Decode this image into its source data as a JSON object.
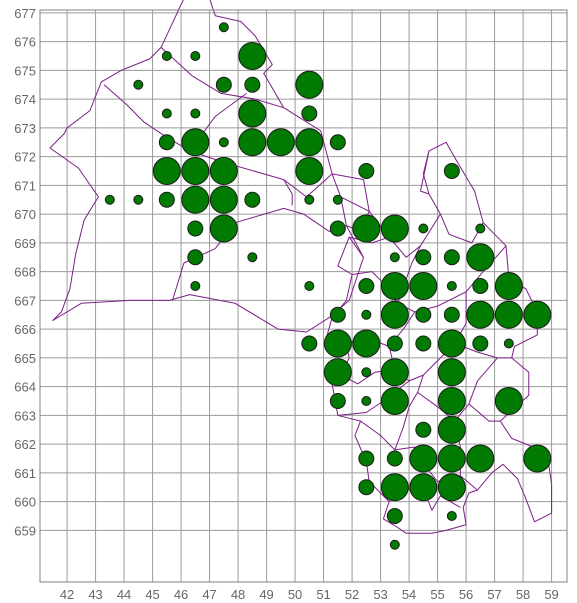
{
  "colors": {
    "dot": "#007a00",
    "boundary": "#7b1f86",
    "grid": "#9a9a9a",
    "tick": "#666666"
  },
  "chart_data": {
    "type": "scatter",
    "title": "",
    "xlabel": "",
    "ylabel": "",
    "xlim": [
      41,
      59.5
    ],
    "ylim": [
      658,
      677.5
    ],
    "grid": true,
    "x_ticks": [
      "42",
      "43",
      "44",
      "45",
      "46",
      "47",
      "48",
      "49",
      "50",
      "51",
      "52",
      "53",
      "54",
      "55",
      "56",
      "57",
      "58",
      "59"
    ],
    "y_ticks": [
      "659",
      "660",
      "661",
      "662",
      "663",
      "664",
      "665",
      "666",
      "667",
      "668",
      "669",
      "670",
      "671",
      "672",
      "673",
      "674",
      "675",
      "676",
      "677"
    ],
    "size_classes": [
      "small",
      "medium",
      "large",
      "xlarge"
    ],
    "points": [
      {
        "x": 47.5,
        "y": 676.5,
        "s": 0
      },
      {
        "x": 45.5,
        "y": 675.5,
        "s": 0
      },
      {
        "x": 46.5,
        "y": 675.5,
        "s": 0
      },
      {
        "x": 48.5,
        "y": 675.5,
        "s": 3
      },
      {
        "x": 44.5,
        "y": 674.5,
        "s": 0
      },
      {
        "x": 47.5,
        "y": 674.5,
        "s": 1
      },
      {
        "x": 48.5,
        "y": 674.5,
        "s": 1
      },
      {
        "x": 50.5,
        "y": 674.5,
        "s": 3
      },
      {
        "x": 45.5,
        "y": 673.5,
        "s": 0
      },
      {
        "x": 46.5,
        "y": 673.5,
        "s": 0
      },
      {
        "x": 48.5,
        "y": 673.5,
        "s": 3
      },
      {
        "x": 50.5,
        "y": 673.5,
        "s": 1
      },
      {
        "x": 45.5,
        "y": 672.5,
        "s": 1
      },
      {
        "x": 46.5,
        "y": 672.5,
        "s": 3
      },
      {
        "x": 47.5,
        "y": 672.5,
        "s": 0
      },
      {
        "x": 48.5,
        "y": 672.5,
        "s": 3
      },
      {
        "x": 49.5,
        "y": 672.5,
        "s": 3
      },
      {
        "x": 50.5,
        "y": 672.5,
        "s": 3
      },
      {
        "x": 51.5,
        "y": 672.5,
        "s": 1
      },
      {
        "x": 45.5,
        "y": 671.5,
        "s": 3
      },
      {
        "x": 46.5,
        "y": 671.5,
        "s": 3
      },
      {
        "x": 47.5,
        "y": 671.5,
        "s": 3
      },
      {
        "x": 50.5,
        "y": 671.5,
        "s": 3
      },
      {
        "x": 52.5,
        "y": 671.5,
        "s": 1
      },
      {
        "x": 55.5,
        "y": 671.5,
        "s": 1
      },
      {
        "x": 43.5,
        "y": 670.5,
        "s": 0
      },
      {
        "x": 44.5,
        "y": 670.5,
        "s": 0
      },
      {
        "x": 45.5,
        "y": 670.5,
        "s": 1
      },
      {
        "x": 46.5,
        "y": 670.5,
        "s": 3
      },
      {
        "x": 47.5,
        "y": 670.5,
        "s": 3
      },
      {
        "x": 48.5,
        "y": 670.5,
        "s": 1
      },
      {
        "x": 50.5,
        "y": 670.5,
        "s": 0
      },
      {
        "x": 51.5,
        "y": 670.5,
        "s": 0
      },
      {
        "x": 46.5,
        "y": 669.5,
        "s": 1
      },
      {
        "x": 47.5,
        "y": 669.5,
        "s": 3
      },
      {
        "x": 51.5,
        "y": 669.5,
        "s": 1
      },
      {
        "x": 52.5,
        "y": 669.5,
        "s": 3
      },
      {
        "x": 53.5,
        "y": 669.5,
        "s": 3
      },
      {
        "x": 54.5,
        "y": 669.5,
        "s": 0
      },
      {
        "x": 56.5,
        "y": 669.5,
        "s": 0
      },
      {
        "x": 46.5,
        "y": 668.5,
        "s": 1
      },
      {
        "x": 48.5,
        "y": 668.5,
        "s": 0
      },
      {
        "x": 53.5,
        "y": 668.5,
        "s": 0
      },
      {
        "x": 54.5,
        "y": 668.5,
        "s": 1
      },
      {
        "x": 55.5,
        "y": 668.5,
        "s": 1
      },
      {
        "x": 56.5,
        "y": 668.5,
        "s": 3
      },
      {
        "x": 46.5,
        "y": 667.5,
        "s": 0
      },
      {
        "x": 50.5,
        "y": 667.5,
        "s": 0
      },
      {
        "x": 52.5,
        "y": 667.5,
        "s": 1
      },
      {
        "x": 53.5,
        "y": 667.5,
        "s": 3
      },
      {
        "x": 54.5,
        "y": 667.5,
        "s": 3
      },
      {
        "x": 55.5,
        "y": 667.5,
        "s": 0
      },
      {
        "x": 56.5,
        "y": 667.5,
        "s": 1
      },
      {
        "x": 57.5,
        "y": 667.5,
        "s": 3
      },
      {
        "x": 51.5,
        "y": 666.5,
        "s": 1
      },
      {
        "x": 52.5,
        "y": 666.5,
        "s": 0
      },
      {
        "x": 53.5,
        "y": 666.5,
        "s": 3
      },
      {
        "x": 54.5,
        "y": 666.5,
        "s": 1
      },
      {
        "x": 55.5,
        "y": 666.5,
        "s": 1
      },
      {
        "x": 56.5,
        "y": 666.5,
        "s": 3
      },
      {
        "x": 57.5,
        "y": 666.5,
        "s": 3
      },
      {
        "x": 58.5,
        "y": 666.5,
        "s": 3
      },
      {
        "x": 50.5,
        "y": 665.5,
        "s": 1
      },
      {
        "x": 51.5,
        "y": 665.5,
        "s": 3
      },
      {
        "x": 52.5,
        "y": 665.5,
        "s": 3
      },
      {
        "x": 53.5,
        "y": 665.5,
        "s": 1
      },
      {
        "x": 54.5,
        "y": 665.5,
        "s": 1
      },
      {
        "x": 55.5,
        "y": 665.5,
        "s": 3
      },
      {
        "x": 56.5,
        "y": 665.5,
        "s": 1
      },
      {
        "x": 57.5,
        "y": 665.5,
        "s": 0
      },
      {
        "x": 51.5,
        "y": 664.5,
        "s": 3
      },
      {
        "x": 52.5,
        "y": 664.5,
        "s": 0
      },
      {
        "x": 53.5,
        "y": 664.5,
        "s": 3
      },
      {
        "x": 55.5,
        "y": 664.5,
        "s": 3
      },
      {
        "x": 51.5,
        "y": 663.5,
        "s": 1
      },
      {
        "x": 52.5,
        "y": 663.5,
        "s": 0
      },
      {
        "x": 53.5,
        "y": 663.5,
        "s": 3
      },
      {
        "x": 55.5,
        "y": 663.5,
        "s": 3
      },
      {
        "x": 57.5,
        "y": 663.5,
        "s": 3
      },
      {
        "x": 54.5,
        "y": 662.5,
        "s": 1
      },
      {
        "x": 55.5,
        "y": 662.5,
        "s": 3
      },
      {
        "x": 52.5,
        "y": 661.5,
        "s": 1
      },
      {
        "x": 53.5,
        "y": 661.5,
        "s": 1
      },
      {
        "x": 54.5,
        "y": 661.5,
        "s": 3
      },
      {
        "x": 55.5,
        "y": 661.5,
        "s": 3
      },
      {
        "x": 56.5,
        "y": 661.5,
        "s": 3
      },
      {
        "x": 58.5,
        "y": 661.5,
        "s": 3
      },
      {
        "x": 52.5,
        "y": 660.5,
        "s": 1
      },
      {
        "x": 53.5,
        "y": 660.5,
        "s": 3
      },
      {
        "x": 54.5,
        "y": 660.5,
        "s": 3
      },
      {
        "x": 55.5,
        "y": 660.5,
        "s": 3
      },
      {
        "x": 53.5,
        "y": 659.5,
        "s": 1
      },
      {
        "x": 55.5,
        "y": 659.5,
        "s": 0
      },
      {
        "x": 53.5,
        "y": 658.5,
        "s": 0
      }
    ],
    "boundaries": [
      [
        [
          52.4,
          668.5
        ],
        [
          51.8,
          669.6
        ],
        [
          51.6,
          670.6
        ],
        [
          51.3,
          671.4
        ],
        [
          50.9,
          672.9
        ],
        [
          49.6,
          673.7
        ],
        [
          48.9,
          674.9
        ],
        [
          49.2,
          675.2
        ],
        [
          48.6,
          676.2
        ],
        [
          48.1,
          676.7
        ],
        [
          47.2,
          676.9
        ],
        [
          47.0,
          677.5
        ],
        [
          46.8,
          677.9
        ],
        [
          46.1,
          677.5
        ],
        [
          45.3,
          675.8
        ],
        [
          44.9,
          675.4
        ],
        [
          43.9,
          675.0
        ],
        [
          43.2,
          674.6
        ],
        [
          42.8,
          673.6
        ],
        [
          42.0,
          673.0
        ],
        [
          41.9,
          672.8
        ],
        [
          41.4,
          672.3
        ],
        [
          42.4,
          671.6
        ],
        [
          43.1,
          670.6
        ],
        [
          42.6,
          669.8
        ],
        [
          42.3,
          668.6
        ],
        [
          42.1,
          667.4
        ],
        [
          41.8,
          666.6
        ],
        [
          41.5,
          666.3
        ],
        [
          42.5,
          666.9
        ],
        [
          44.2,
          667.0
        ],
        [
          45.6,
          667.0
        ],
        [
          46.3,
          667.2
        ],
        [
          47.9,
          666.9
        ],
        [
          49.4,
          666.0
        ],
        [
          50.4,
          665.9
        ],
        [
          51.2,
          666.4
        ],
        [
          51.9,
          667.0
        ],
        [
          52.4,
          668.5
        ]
      ],
      [
        [
          43.3,
          674.5
        ],
        [
          44.1,
          673.8
        ],
        [
          44.7,
          673.2
        ],
        [
          45.3,
          672.8
        ],
        [
          46.3,
          672.2
        ],
        [
          47.5,
          671.8
        ],
        [
          49.6,
          671.2
        ],
        [
          50.4,
          670.6
        ],
        [
          51.3,
          671.4
        ]
      ],
      [
        [
          45.3,
          675.8
        ],
        [
          46.4,
          674.8
        ],
        [
          47.4,
          674.2
        ],
        [
          48.6,
          674.0
        ],
        [
          49.6,
          673.7
        ]
      ],
      [
        [
          46.3,
          672.2
        ],
        [
          47.2,
          673.4
        ],
        [
          48.3,
          674.2
        ]
      ],
      [
        [
          47.2,
          668.8
        ],
        [
          47.9,
          669.7
        ],
        [
          49.6,
          670.2
        ],
        [
          50.3,
          670.0
        ],
        [
          51.2,
          669.4
        ],
        [
          51.8,
          669.6
        ]
      ],
      [
        [
          45.7,
          667.0
        ],
        [
          46.1,
          668.3
        ],
        [
          47.2,
          668.8
        ]
      ],
      [
        [
          49.6,
          671.2
        ],
        [
          49.9,
          670.7
        ],
        [
          49.9,
          670.3
        ]
      ],
      [
        [
          51.3,
          671.4
        ],
        [
          52.4,
          671.2
        ],
        [
          52.6,
          670.1
        ],
        [
          52.3,
          669.4
        ],
        [
          51.8,
          669.6
        ]
      ],
      [
        [
          51.6,
          670.6
        ],
        [
          52.6,
          670.1
        ],
        [
          53.3,
          669.2
        ],
        [
          53.9,
          668.5
        ],
        [
          54.4,
          668.9
        ],
        [
          55.1,
          670.0
        ],
        [
          54.7,
          670.7
        ],
        [
          54.5,
          671.4
        ],
        [
          54.7,
          672.2
        ],
        [
          55.3,
          672.5
        ],
        [
          55.7,
          671.8
        ],
        [
          56.3,
          670.8
        ],
        [
          56.6,
          669.7
        ],
        [
          57.4,
          668.9
        ],
        [
          57.5,
          667.8
        ],
        [
          58.1,
          667.4
        ],
        [
          58.5,
          666.6
        ],
        [
          58.5,
          665.8
        ],
        [
          57.7,
          665.4
        ],
        [
          57.6,
          665.0
        ],
        [
          58.2,
          664.5
        ],
        [
          58.2,
          663.7
        ],
        [
          57.2,
          662.8
        ],
        [
          57.6,
          662.2
        ],
        [
          58.6,
          661.8
        ],
        [
          58.9,
          661.3
        ],
        [
          59.0,
          660.6
        ],
        [
          59.0,
          659.6
        ],
        [
          58.4,
          659.3
        ],
        [
          58.1,
          660.1
        ],
        [
          57.8,
          660.8
        ],
        [
          57.3,
          661.3
        ],
        [
          56.9,
          661.0
        ],
        [
          56.4,
          660.4
        ],
        [
          56.1,
          660.3
        ],
        [
          55.9,
          659.8
        ],
        [
          56.0,
          659.2
        ],
        [
          55.3,
          659.0
        ],
        [
          54.8,
          658.9
        ],
        [
          53.9,
          658.9
        ],
        [
          53.6,
          659.1
        ],
        [
          53.1,
          659.4
        ],
        [
          53.3,
          660.0
        ],
        [
          52.6,
          660.7
        ],
        [
          52.5,
          661.4
        ],
        [
          52.1,
          662.3
        ],
        [
          52.3,
          662.8
        ],
        [
          51.9,
          662.9
        ],
        [
          51.5,
          663.0
        ],
        [
          51.3,
          664.1
        ],
        [
          51.6,
          664.4
        ],
        [
          51.9,
          665.0
        ],
        [
          51.8,
          665.5
        ],
        [
          51.1,
          665.7
        ],
        [
          51.3,
          666.4
        ],
        [
          51.8,
          667.0
        ],
        [
          52.0,
          667.9
        ],
        [
          51.5,
          668.2
        ],
        [
          51.9,
          669.2
        ],
        [
          52.4,
          668.5
        ]
      ],
      [
        [
          51.9,
          669.2
        ],
        [
          52.7,
          669.0
        ],
        [
          53.3,
          669.2
        ]
      ],
      [
        [
          52.0,
          667.9
        ],
        [
          52.7,
          668.0
        ],
        [
          53.1,
          667.6
        ],
        [
          53.6,
          666.9
        ],
        [
          54.2,
          666.6
        ],
        [
          55.0,
          666.8
        ],
        [
          56.0,
          667.3
        ],
        [
          56.6,
          668.0
        ],
        [
          57.4,
          668.9
        ]
      ],
      [
        [
          54.4,
          668.9
        ],
        [
          54.1,
          668.3
        ],
        [
          53.6,
          666.9
        ]
      ],
      [
        [
          55.1,
          670.0
        ],
        [
          55.4,
          669.3
        ],
        [
          56.2,
          669.0
        ],
        [
          56.6,
          669.7
        ]
      ],
      [
        [
          51.8,
          665.5
        ],
        [
          52.5,
          665.7
        ],
        [
          53.3,
          665.4
        ],
        [
          53.8,
          666.0
        ],
        [
          54.2,
          666.6
        ]
      ],
      [
        [
          53.3,
          665.4
        ],
        [
          53.5,
          664.6
        ],
        [
          54.0,
          664.2
        ],
        [
          54.5,
          664.4
        ],
        [
          55.1,
          665.0
        ],
        [
          55.6,
          665.5
        ],
        [
          56.0,
          666.2
        ],
        [
          56.0,
          667.3
        ]
      ],
      [
        [
          55.6,
          665.5
        ],
        [
          56.4,
          665.2
        ],
        [
          57.1,
          665.0
        ],
        [
          57.6,
          665.0
        ]
      ],
      [
        [
          51.6,
          664.4
        ],
        [
          52.2,
          664.1
        ],
        [
          52.8,
          664.5
        ],
        [
          53.5,
          664.6
        ]
      ],
      [
        [
          51.5,
          663.0
        ],
        [
          52.5,
          663.1
        ],
        [
          53.1,
          663.5
        ],
        [
          54.0,
          664.2
        ]
      ],
      [
        [
          52.3,
          662.8
        ],
        [
          53.0,
          662.3
        ],
        [
          53.5,
          661.8
        ],
        [
          54.2,
          661.9
        ],
        [
          54.6,
          661.2
        ],
        [
          55.0,
          660.7
        ],
        [
          55.8,
          660.9
        ],
        [
          56.4,
          660.4
        ]
      ],
      [
        [
          53.5,
          661.8
        ],
        [
          53.8,
          662.6
        ],
        [
          54.0,
          663.3
        ],
        [
          54.3,
          663.8
        ],
        [
          54.5,
          664.4
        ]
      ],
      [
        [
          54.3,
          663.8
        ],
        [
          55.0,
          663.3
        ],
        [
          55.6,
          662.8
        ],
        [
          56.1,
          663.4
        ],
        [
          56.8,
          662.8
        ],
        [
          57.2,
          662.8
        ]
      ],
      [
        [
          55.6,
          662.8
        ],
        [
          55.8,
          661.9
        ],
        [
          55.8,
          660.9
        ]
      ],
      [
        [
          56.1,
          663.4
        ],
        [
          56.4,
          664.2
        ],
        [
          57.1,
          665.0
        ]
      ],
      [
        [
          53.3,
          660.0
        ],
        [
          53.8,
          660.5
        ],
        [
          54.6,
          660.2
        ],
        [
          54.8,
          659.7
        ],
        [
          55.1,
          660.2
        ],
        [
          55.8,
          659.8
        ]
      ],
      [
        [
          54.7,
          672.2
        ],
        [
          54.4,
          670.8
        ],
        [
          54.7,
          670.7
        ]
      ]
    ]
  }
}
